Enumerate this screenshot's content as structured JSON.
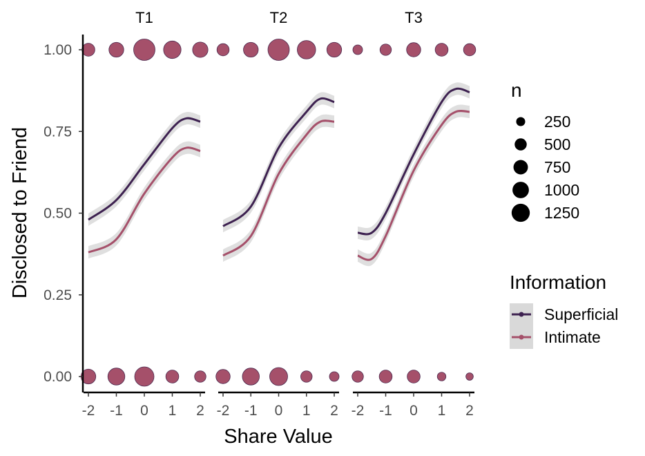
{
  "chart_data": {
    "type": "line",
    "xlabel": "Share Value",
    "ylabel": "Disclosed to Friend",
    "x_ticks": [
      -2,
      -1,
      0,
      1,
      2
    ],
    "y_ticks": [
      0.0,
      0.25,
      0.5,
      0.75,
      1.0
    ],
    "y_tick_labels": [
      "0.00",
      "0.25",
      "0.50",
      "0.75",
      "1.00"
    ],
    "x_tick_labels": [
      "-2",
      "-1",
      "0",
      "1",
      "2"
    ],
    "xlim": [
      -2,
      2
    ],
    "ylim": [
      0,
      1
    ],
    "grid": false,
    "legend_position": "right",
    "size_legend": {
      "title": "n",
      "values": [
        250,
        500,
        750,
        1000,
        1250
      ],
      "labels": [
        "250",
        "500",
        "750",
        "1000",
        "1250"
      ]
    },
    "color_legend": {
      "title": "Information",
      "entries": [
        {
          "name": "Superficial",
          "color": "#3d2150"
        },
        {
          "name": "Intimate",
          "color": "#a5506a"
        }
      ]
    },
    "colors": {
      "superficial": "#3d2150",
      "intimate": "#a5506a",
      "points": "#a5506a",
      "ribbon": "#d9d9d9"
    },
    "panels": [
      {
        "label": "T1",
        "series": [
          {
            "name": "Superficial",
            "x": [
              -2,
              -1,
              0,
              1,
              1.5,
              2
            ],
            "y": [
              0.48,
              0.54,
              0.65,
              0.76,
              0.79,
              0.78
            ]
          },
          {
            "name": "Intimate",
            "x": [
              -2,
              -1,
              0,
              1,
              1.5,
              2
            ],
            "y": [
              0.38,
              0.42,
              0.56,
              0.67,
              0.7,
              0.69
            ]
          }
        ],
        "points": [
          {
            "x": -2,
            "y": 1,
            "n": 400
          },
          {
            "x": -1,
            "y": 1,
            "n": 550
          },
          {
            "x": 0,
            "y": 1,
            "n": 1250
          },
          {
            "x": 1,
            "y": 1,
            "n": 800
          },
          {
            "x": 2,
            "y": 1,
            "n": 600
          },
          {
            "x": -2,
            "y": 0,
            "n": 550
          },
          {
            "x": -1,
            "y": 0,
            "n": 750
          },
          {
            "x": 0,
            "y": 0,
            "n": 1000
          },
          {
            "x": 1,
            "y": 0,
            "n": 400
          },
          {
            "x": 2,
            "y": 0,
            "n": 300
          }
        ]
      },
      {
        "label": "T2",
        "series": [
          {
            "name": "Superficial",
            "x": [
              -2,
              -1,
              0,
              1,
              1.5,
              2
            ],
            "y": [
              0.46,
              0.52,
              0.7,
              0.81,
              0.85,
              0.84
            ]
          },
          {
            "name": "Intimate",
            "x": [
              -2,
              -1,
              0,
              1,
              1.5,
              2
            ],
            "y": [
              0.37,
              0.43,
              0.62,
              0.74,
              0.78,
              0.78
            ]
          }
        ],
        "points": [
          {
            "x": -2,
            "y": 1,
            "n": 350
          },
          {
            "x": -1,
            "y": 1,
            "n": 550
          },
          {
            "x": 0,
            "y": 1,
            "n": 1250
          },
          {
            "x": 1,
            "y": 1,
            "n": 900
          },
          {
            "x": 2,
            "y": 1,
            "n": 550
          },
          {
            "x": -2,
            "y": 0,
            "n": 500
          },
          {
            "x": -1,
            "y": 0,
            "n": 750
          },
          {
            "x": 0,
            "y": 0,
            "n": 850
          },
          {
            "x": 1,
            "y": 0,
            "n": 300
          },
          {
            "x": 2,
            "y": 0,
            "n": 200
          }
        ]
      },
      {
        "label": "T3",
        "series": [
          {
            "name": "Superficial",
            "x": [
              -2,
              -1.5,
              -1,
              0,
              1,
              1.5,
              2
            ],
            "y": [
              0.44,
              0.44,
              0.5,
              0.68,
              0.84,
              0.88,
              0.87
            ]
          },
          {
            "name": "Intimate",
            "x": [
              -2,
              -1.5,
              -1,
              0,
              1,
              1.5,
              2
            ],
            "y": [
              0.37,
              0.36,
              0.43,
              0.63,
              0.77,
              0.81,
              0.81
            ]
          }
        ],
        "points": [
          {
            "x": -2,
            "y": 1,
            "n": 200
          },
          {
            "x": -1,
            "y": 1,
            "n": 300
          },
          {
            "x": 0,
            "y": 1,
            "n": 500
          },
          {
            "x": 1,
            "y": 1,
            "n": 400
          },
          {
            "x": 2,
            "y": 1,
            "n": 350
          },
          {
            "x": -2,
            "y": 0,
            "n": 300
          },
          {
            "x": -1,
            "y": 0,
            "n": 400
          },
          {
            "x": 0,
            "y": 0,
            "n": 400
          },
          {
            "x": 1,
            "y": 0,
            "n": 150
          },
          {
            "x": 2,
            "y": 0,
            "n": 100
          }
        ]
      }
    ]
  }
}
